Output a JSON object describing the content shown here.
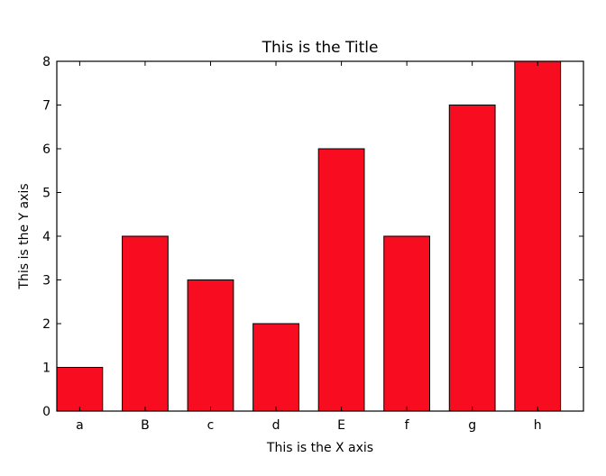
{
  "chart_data": {
    "type": "bar",
    "title": "This is the Title",
    "xlabel": "This is the X axis",
    "ylabel": "This is the Y axis",
    "categories": [
      "a",
      "B",
      "c",
      "d",
      "E",
      "f",
      "g",
      "h"
    ],
    "values": [
      1,
      4,
      3,
      2,
      6,
      4,
      7,
      8
    ],
    "ylim": [
      0,
      8
    ],
    "yticks": [
      0,
      1,
      2,
      3,
      4,
      5,
      6,
      7,
      8
    ],
    "grid": false,
    "legend": "none",
    "bar_color": "#f80c1f",
    "edge_color": "#000000"
  }
}
